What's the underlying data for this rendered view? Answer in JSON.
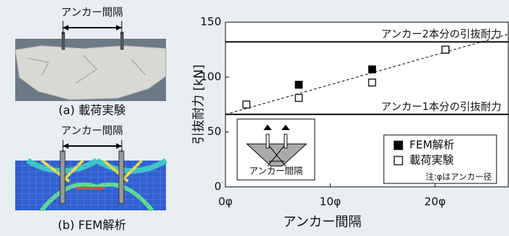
{
  "panels": [
    {
      "dimension": "アンカー間隔",
      "caption": "(a) 載荷実験"
    },
    {
      "dimension": "アンカー間隔",
      "caption": "(b) FEM解析"
    }
  ],
  "chart_data": {
    "type": "scatter",
    "xlabel": "アンカー間隔",
    "ylabel": "引抜耐力 [kN]",
    "xlim": [
      0,
      27
    ],
    "ylim": [
      0,
      150
    ],
    "xticks": [
      {
        "value": 0,
        "label": "0φ"
      },
      {
        "value": 10,
        "label": "10φ"
      },
      {
        "value": 20,
        "label": "20φ"
      }
    ],
    "yticks": [
      0,
      50,
      100,
      150
    ],
    "series": [
      {
        "name": "FEM解析",
        "color": "#000000",
        "filled": true,
        "x": [
          7,
          14,
          21
        ],
        "y": [
          93,
          107,
          125
        ]
      },
      {
        "name": "載荷実験",
        "color": "#000000",
        "filled": false,
        "x": [
          2,
          7,
          14,
          21
        ],
        "y": [
          75,
          81,
          95,
          125
        ]
      }
    ],
    "reference_lines": [
      {
        "y": 132,
        "label": "アンカー2本分の引抜耐力"
      },
      {
        "y": 66,
        "label": "アンカー1本分の引抜耐力"
      }
    ],
    "trend_line": {
      "x": [
        0,
        27
      ],
      "y": [
        66,
        139
      ]
    },
    "note": "注:φはアンカー径",
    "inset_label": "アンカー間隔",
    "legend": "lower right"
  }
}
